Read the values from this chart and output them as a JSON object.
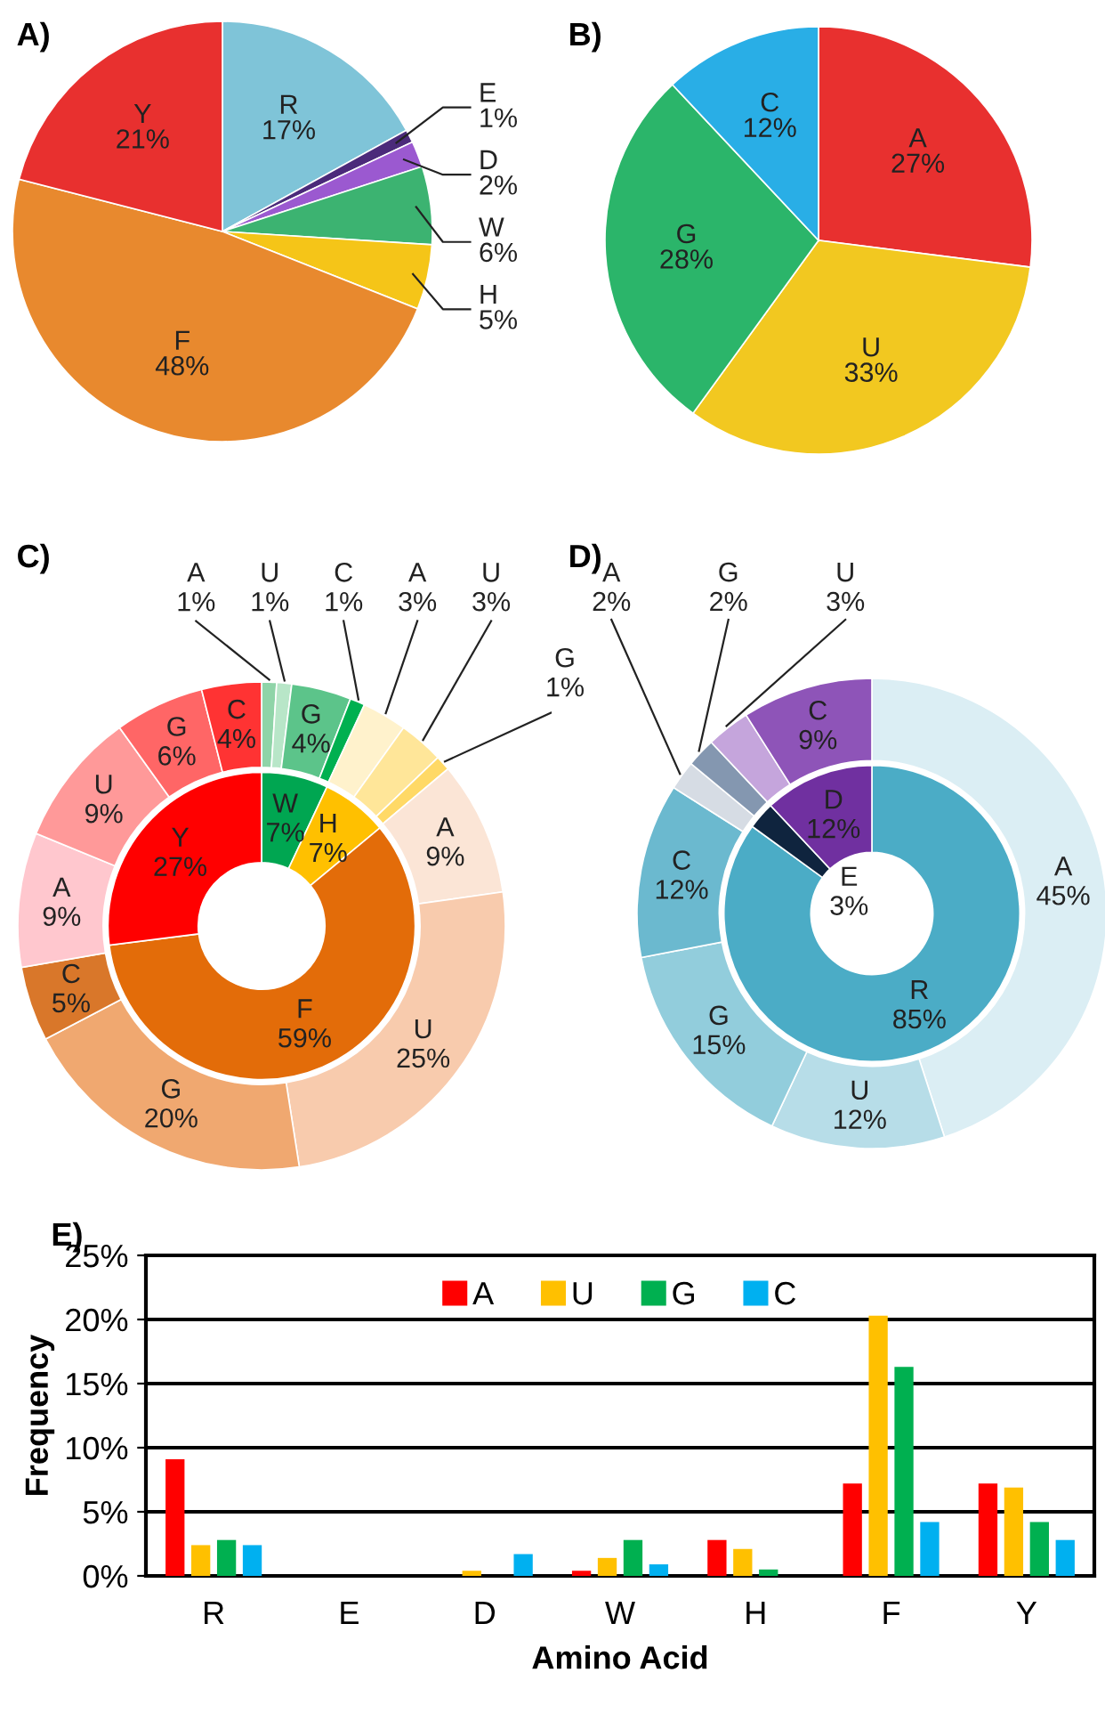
{
  "chart_data": [
    {
      "type": "pie",
      "title": "A)",
      "categories": [
        "R",
        "E",
        "D",
        "W",
        "H",
        "F",
        "Y"
      ],
      "values": [
        17,
        1,
        2,
        6,
        5,
        48,
        21
      ],
      "value_labels": [
        "17%",
        "1%",
        "2%",
        "6%",
        "5%",
        "48%",
        "21%"
      ],
      "colors": [
        "#7fc4d8",
        "#4b2a7a",
        "#9b59d0",
        "#3cb371",
        "#f5c518",
        "#e8892e",
        "#e8302f"
      ]
    },
    {
      "type": "pie",
      "title": "B)",
      "categories": [
        "A",
        "U",
        "G",
        "C"
      ],
      "values": [
        27,
        33,
        28,
        12
      ],
      "value_labels": [
        "27%",
        "33%",
        "28%",
        "12%"
      ],
      "colors": [
        "#e8302f",
        "#f2c820",
        "#2bb56a",
        "#29aee6"
      ]
    },
    {
      "type": "donut",
      "title": "C)",
      "series": [
        {
          "values": [
            7,
            7,
            59,
            27
          ],
          "value_labels": [
            "W\n7%",
            "H\n7%",
            "F\n59%",
            "Y\n27%"
          ],
          "colors": [
            "#00a651",
            "#ffc000",
            "#e36c09",
            "#ff0000"
          ]
        },
        {
          "values": [
            1,
            1,
            4,
            1,
            3,
            3,
            1,
            9,
            25,
            20,
            5,
            9,
            9,
            6,
            4
          ],
          "value_labels": [
            "A\n1%",
            "U\n1%",
            "G\n4%",
            "C\n1%",
            "A\n3%",
            "U\n3%",
            "G\n1%",
            "A\n9%",
            "U\n25%",
            "G\n20%",
            "C\n5%",
            "A\n9%",
            "U\n9%",
            "G\n6%",
            "C\n4%"
          ],
          "colors": [
            "#8fd4a8",
            "#b8e6c8",
            "#5cc48a",
            "#00b050",
            "#fff2cc",
            "#ffe699",
            "#ffd966",
            "#fbe5d6",
            "#f8cbad",
            "#f0a870",
            "#d9772a",
            "#ffc7ce",
            "#ff9999",
            "#ff6666",
            "#ff3333"
          ]
        }
      ]
    },
    {
      "type": "donut",
      "title": "D)",
      "series": [
        {
          "values": [
            85,
            3,
            12
          ],
          "value_labels": [
            "R\n85%",
            "E\n3%",
            "D\n12%"
          ],
          "colors": [
            "#4bacc6",
            "#0f243e",
            "#7030a0"
          ]
        },
        {
          "values": [
            45,
            12,
            15,
            12,
            2,
            2,
            3,
            9
          ],
          "value_labels": [
            "A\n45%",
            "U\n12%",
            "G\n15%",
            "C\n12%",
            "A\n2%",
            "G\n2%",
            "U\n3%",
            "C\n9%"
          ],
          "colors": [
            "#dbeef4",
            "#b7dde8",
            "#92cddc",
            "#6bb9cf",
            "#d6dce4",
            "#8497b0",
            "#c5a5dc",
            "#8e54b8"
          ]
        }
      ]
    },
    {
      "type": "bar",
      "title": "E)",
      "categories": [
        "R",
        "E",
        "D",
        "W",
        "H",
        "F",
        "Y"
      ],
      "xlabel": "Amino Acid",
      "ylabel": "Frequency",
      "ylim": [
        0,
        25
      ],
      "yticks": [
        {
          "value": 0,
          "label": "0%"
        },
        {
          "value": 5,
          "label": "5%"
        },
        {
          "value": 10,
          "label": "10%"
        },
        {
          "value": 15,
          "label": "15%"
        },
        {
          "value": 20,
          "label": "20%"
        },
        {
          "value": 25,
          "label": "25%"
        }
      ],
      "grid": "y",
      "legend": "top",
      "series": [
        {
          "name": "A",
          "color": "#ff0000",
          "values": [
            9.1,
            0,
            0,
            0.4,
            2.8,
            7.2,
            7.2
          ]
        },
        {
          "name": "U",
          "color": "#ffc000",
          "values": [
            2.4,
            0,
            0.4,
            1.4,
            2.1,
            20.3,
            6.9
          ]
        },
        {
          "name": "G",
          "color": "#00b050",
          "values": [
            2.8,
            0,
            0,
            2.8,
            0.5,
            16.3,
            4.2
          ]
        },
        {
          "name": "C",
          "color": "#00b0f0",
          "values": [
            2.4,
            0,
            1.7,
            0.9,
            0,
            4.2,
            2.8
          ]
        }
      ]
    }
  ]
}
